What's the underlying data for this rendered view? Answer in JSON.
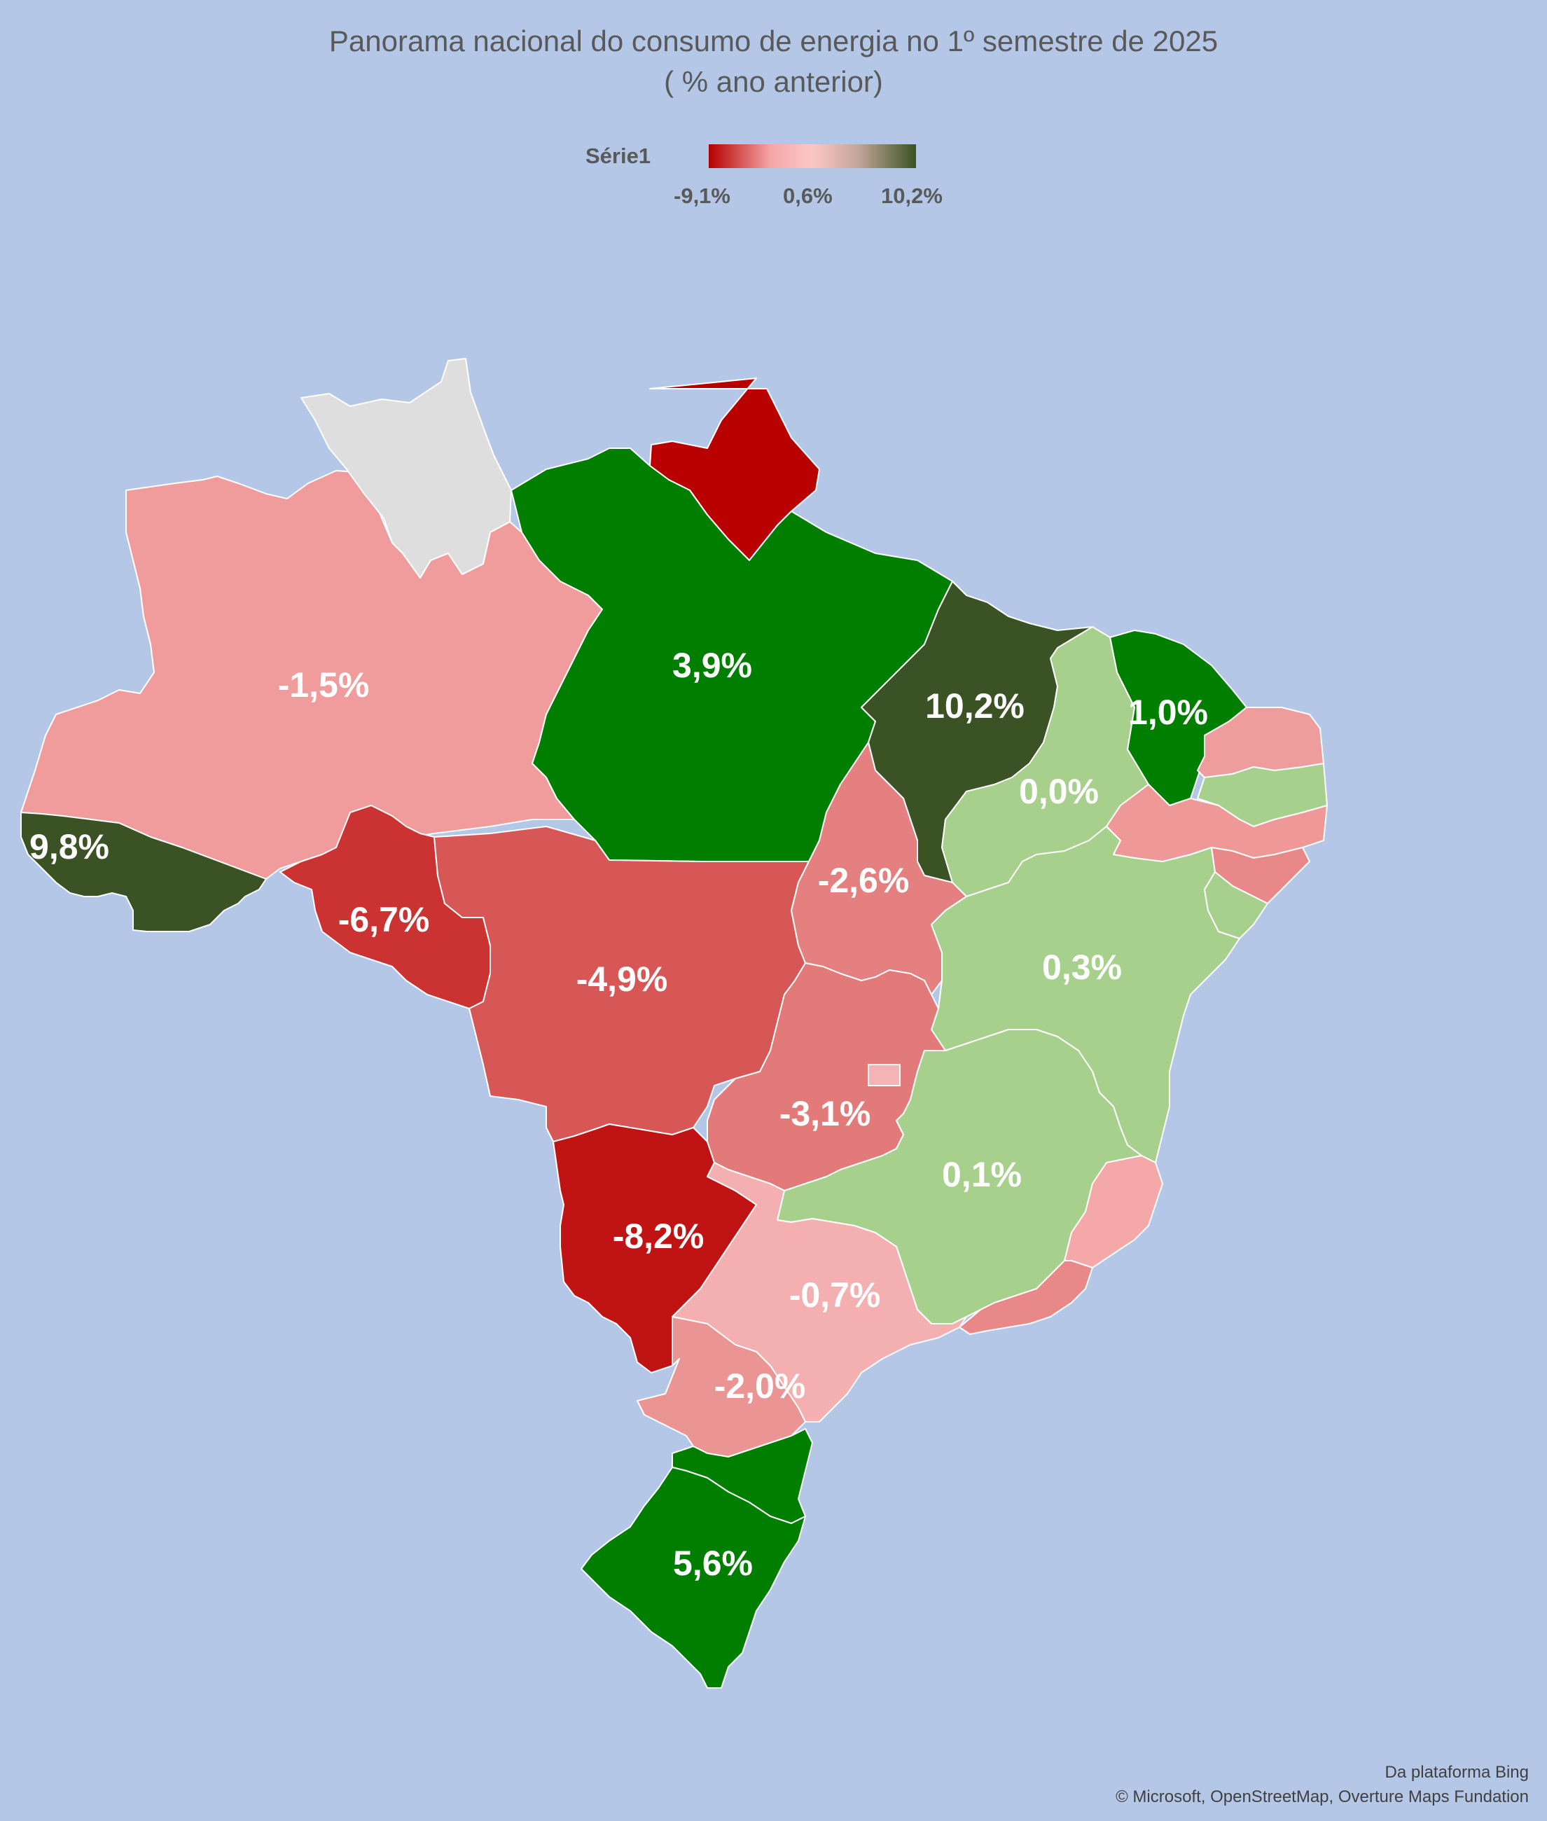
{
  "title": {
    "line1": "Panorama nacional do consumo de energia no 1º semestre de 2025",
    "line2": "( % ano anterior)"
  },
  "legend": {
    "label": "Série1",
    "min": "-9,1%",
    "mid": "0,6%",
    "max": "10,2%",
    "colors": [
      "#b40000",
      "#f4a6a6",
      "#fdc7c7",
      "#3b5323"
    ]
  },
  "map_data": {
    "type": "choropleth",
    "region": "Brasil",
    "unit": "%",
    "regions": [
      {
        "id": "AM",
        "value": -1.5,
        "label": "-1,5%",
        "color": "#f09c9c"
      },
      {
        "id": "RR",
        "value": null,
        "label": "",
        "color": "#dedede"
      },
      {
        "id": "AP",
        "value": null,
        "label": "",
        "color": "#b80000"
      },
      {
        "id": "PA",
        "value": 3.9,
        "label": "3,9%",
        "color": "#007e00"
      },
      {
        "id": "MA",
        "value": 10.2,
        "label": "10,2%",
        "color": "#3b5324"
      },
      {
        "id": "CE",
        "value": 1.0,
        "label": "1,0%",
        "color": "#007e00"
      },
      {
        "id": "PI",
        "value": 0.0,
        "label": "0,0%",
        "color": "#a8d08d"
      },
      {
        "id": "AC",
        "value": 9.8,
        "label": "9,8%",
        "color": "#3b5324"
      },
      {
        "id": "RO",
        "value": -6.7,
        "label": "-6,7%",
        "color": "#cb3232"
      },
      {
        "id": "MT",
        "value": -4.9,
        "label": "-4,9%",
        "color": "#d75656"
      },
      {
        "id": "TO",
        "value": -2.6,
        "label": "-2,6%",
        "color": "#e48080"
      },
      {
        "id": "BA",
        "value": 0.3,
        "label": "0,3%",
        "color": "#a8d08d"
      },
      {
        "id": "GO",
        "value": -3.1,
        "label": "-3,1%",
        "color": "#e27a7a"
      },
      {
        "id": "DF",
        "value": null,
        "label": "",
        "color": "#f4b4b4"
      },
      {
        "id": "MG",
        "value": 0.1,
        "label": "0,1%",
        "color": "#a8d08d"
      },
      {
        "id": "MS",
        "value": -8.2,
        "label": "-8,2%",
        "color": "#c01414"
      },
      {
        "id": "SP",
        "value": -0.7,
        "label": "-0,7%",
        "color": "#f4b0b0"
      },
      {
        "id": "PR",
        "value": -2.0,
        "label": "-2,0%",
        "color": "#ea9494"
      },
      {
        "id": "SC",
        "value": null,
        "label": "",
        "color": "#007e00"
      },
      {
        "id": "RS",
        "value": 5.6,
        "label": "5,6%",
        "color": "#007e00"
      },
      {
        "id": "ES",
        "value": null,
        "label": "",
        "color": "#f4a8a8"
      },
      {
        "id": "RJ",
        "value": null,
        "label": "",
        "color": "#e88888"
      },
      {
        "id": "RN",
        "value": null,
        "label": "",
        "color": "#ee9c9c"
      },
      {
        "id": "PB",
        "value": null,
        "label": "",
        "color": "#a8d08d"
      },
      {
        "id": "PE",
        "value": null,
        "label": "",
        "color": "#ee9898"
      },
      {
        "id": "AL",
        "value": null,
        "label": "",
        "color": "#e88888"
      },
      {
        "id": "SE",
        "value": null,
        "label": "",
        "color": "#a8d08d"
      }
    ]
  },
  "credits": {
    "line1": "Da plataforma Bing",
    "line2": "© Microsoft, OpenStreetMap, Overture Maps Fundation"
  }
}
